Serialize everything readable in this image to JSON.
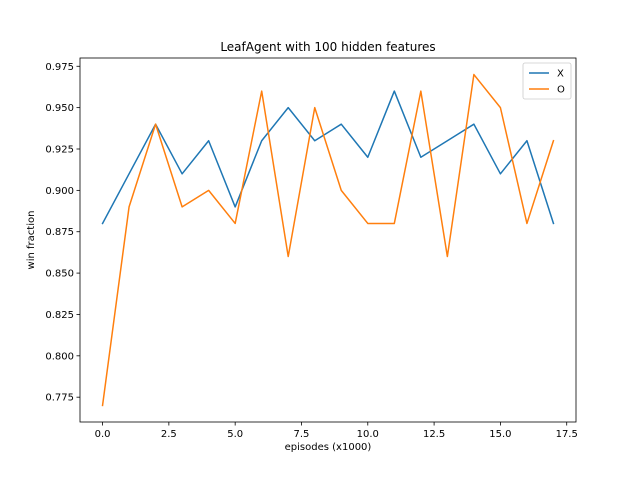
{
  "chart_data": {
    "type": "line",
    "title": "LeafAgent with 100 hidden features",
    "xlabel": "episodes (x1000)",
    "ylabel": "win fraction",
    "xlim": [
      -0.85,
      17.85
    ],
    "ylim": [
      0.76,
      0.98
    ],
    "xticks": [
      0.0,
      2.5,
      5.0,
      7.5,
      10.0,
      12.5,
      15.0,
      17.5
    ],
    "xtick_labels": [
      "0.0",
      "2.5",
      "5.0",
      "7.5",
      "10.0",
      "12.5",
      "15.0",
      "17.5"
    ],
    "yticks": [
      0.775,
      0.8,
      0.825,
      0.85,
      0.875,
      0.9,
      0.925,
      0.95,
      0.975
    ],
    "ytick_labels": [
      "0.775",
      "0.800",
      "0.825",
      "0.850",
      "0.875",
      "0.900",
      "0.925",
      "0.950",
      "0.975"
    ],
    "grid": false,
    "legend_position": "top-right",
    "x": [
      0,
      1,
      2,
      3,
      4,
      5,
      6,
      7,
      8,
      9,
      10,
      11,
      12,
      13,
      14,
      15,
      16,
      17
    ],
    "series": [
      {
        "name": "X",
        "color": "#1f77b4",
        "values": [
          0.88,
          0.91,
          0.94,
          0.91,
          0.93,
          0.89,
          0.93,
          0.95,
          0.93,
          0.94,
          0.92,
          0.96,
          0.92,
          0.93,
          0.94,
          0.91,
          0.93,
          0.88
        ]
      },
      {
        "name": "O",
        "color": "#ff7f0e",
        "values": [
          0.77,
          0.89,
          0.94,
          0.89,
          0.9,
          0.88,
          0.96,
          0.86,
          0.95,
          0.9,
          0.88,
          0.88,
          0.96,
          0.86,
          0.97,
          0.95,
          0.88,
          0.93
        ]
      }
    ]
  }
}
